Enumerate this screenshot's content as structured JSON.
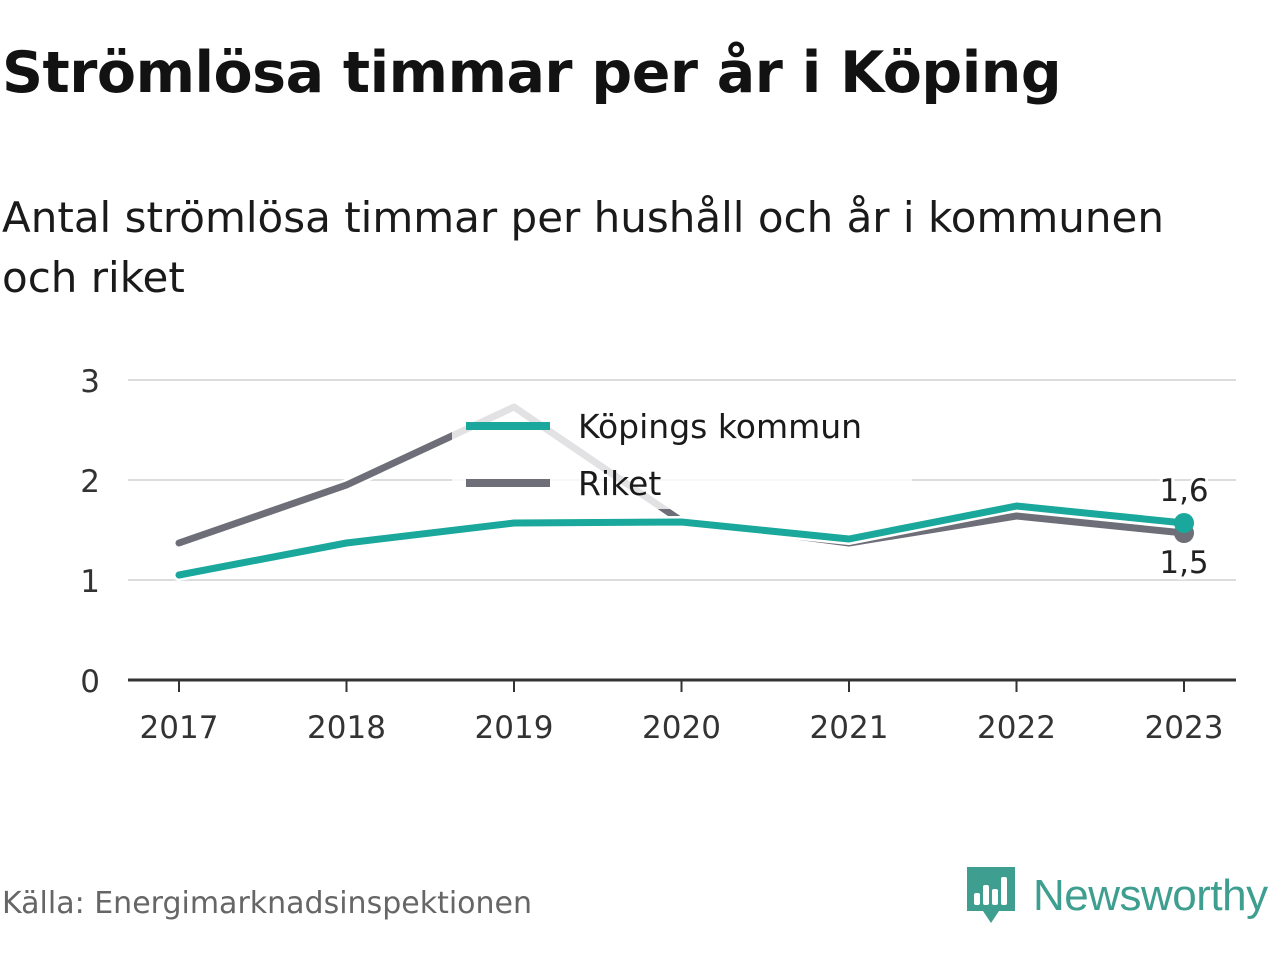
{
  "chart_data": {
    "type": "line",
    "title": "Strömlösa timmar per år i Köping",
    "subtitle": "Antal strömlösa timmar per hushåll och år i kommunen och riket",
    "x": [
      "2017",
      "2018",
      "2019",
      "2020",
      "2021",
      "2022",
      "2023"
    ],
    "ylim": [
      0,
      3
    ],
    "yticks": [
      "0",
      "1",
      "2",
      "3"
    ],
    "grid": true,
    "legend_position": "top-center",
    "series": [
      {
        "name": "Köpings kommun",
        "color": "#19a89b",
        "values": [
          1.05,
          1.37,
          1.57,
          1.58,
          1.41,
          1.74,
          1.57
        ],
        "end_label": "1,6"
      },
      {
        "name": "Riket",
        "color": "#6e6e78",
        "values": [
          1.37,
          1.95,
          2.73,
          1.59,
          1.37,
          1.64,
          1.47
        ],
        "end_label": "1,5"
      }
    ]
  },
  "source": "Källa: Energimarknadsinspektionen",
  "brand": {
    "name": "Newsworthy",
    "color": "#3e9e8f"
  }
}
